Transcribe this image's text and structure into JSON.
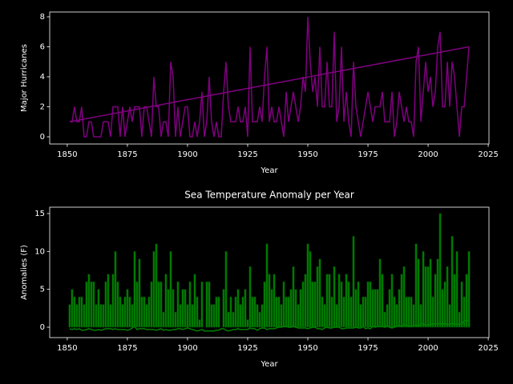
{
  "chart_data": [
    {
      "type": "line",
      "xlabel": "Year",
      "ylabel": "Major Hurricanes",
      "xlim": [
        1842.7,
        2025.3
      ],
      "xticks": [
        1850,
        1875,
        1900,
        1925,
        1950,
        1975,
        2000,
        2025
      ],
      "ylim": [
        -0.48,
        8.32
      ],
      "yticks": [
        0,
        2,
        4,
        6,
        8
      ],
      "x": [
        1851,
        1852,
        1853,
        1854,
        1855,
        1856,
        1857,
        1858,
        1859,
        1860,
        1861,
        1862,
        1863,
        1864,
        1865,
        1866,
        1867,
        1868,
        1869,
        1870,
        1871,
        1872,
        1873,
        1874,
        1875,
        1876,
        1877,
        1878,
        1879,
        1880,
        1881,
        1882,
        1883,
        1884,
        1885,
        1886,
        1887,
        1888,
        1889,
        1890,
        1891,
        1892,
        1893,
        1894,
        1895,
        1896,
        1897,
        1898,
        1899,
        1900,
        1901,
        1902,
        1903,
        1904,
        1905,
        1906,
        1907,
        1908,
        1909,
        1910,
        1911,
        1912,
        1913,
        1914,
        1915,
        1916,
        1917,
        1918,
        1919,
        1920,
        1921,
        1922,
        1923,
        1924,
        1925,
        1926,
        1927,
        1928,
        1929,
        1930,
        1931,
        1932,
        1933,
        1934,
        1935,
        1936,
        1937,
        1938,
        1939,
        1940,
        1941,
        1942,
        1943,
        1944,
        1945,
        1946,
        1947,
        1948,
        1949,
        1950,
        1951,
        1952,
        1953,
        1954,
        1955,
        1956,
        1957,
        1958,
        1959,
        1960,
        1961,
        1962,
        1963,
        1964,
        1965,
        1966,
        1967,
        1968,
        1969,
        1970,
        1971,
        1972,
        1973,
        1974,
        1975,
        1976,
        1977,
        1978,
        1979,
        1980,
        1981,
        1982,
        1983,
        1984,
        1985,
        1986,
        1987,
        1988,
        1989,
        1990,
        1991,
        1992,
        1993,
        1994,
        1995,
        1996,
        1997,
        1998,
        1999,
        2000,
        2001,
        2002,
        2003,
        2004,
        2005,
        2006,
        2007,
        2008,
        2009,
        2010,
        2011,
        2012,
        2013,
        2014,
        2015,
        2016,
        2017
      ],
      "series": [
        {
          "type": "line",
          "color": "#800080",
          "values": [
            1,
            1,
            2,
            1,
            1,
            2,
            0,
            0,
            1,
            1,
            0,
            0,
            0,
            0,
            1,
            1,
            1,
            0,
            2,
            2,
            2,
            0,
            2,
            0,
            1,
            2,
            1,
            2,
            2,
            2,
            0,
            2,
            2,
            1,
            0,
            4,
            2,
            2,
            0,
            1,
            1,
            0,
            5,
            4,
            0,
            2,
            0,
            1,
            2,
            2,
            0,
            0,
            1,
            0,
            1,
            3,
            0,
            1,
            4,
            1,
            0,
            1,
            0,
            0,
            3,
            5,
            2,
            1,
            1,
            1,
            2,
            1,
            1,
            2,
            0,
            6,
            1,
            1,
            1,
            2,
            1,
            4,
            6,
            1,
            2,
            1,
            1,
            2,
            1,
            0,
            3,
            1,
            2,
            3,
            2,
            1,
            2,
            4,
            3,
            8,
            5,
            3,
            4,
            2,
            6,
            2,
            2,
            5,
            2,
            2,
            7,
            1,
            2,
            6,
            1,
            3,
            1,
            0,
            5,
            2,
            1,
            0,
            1,
            2,
            3,
            2,
            1,
            2,
            2,
            2,
            3,
            1,
            1,
            1,
            3,
            0,
            1,
            3,
            2,
            1,
            2,
            1,
            1,
            0,
            5,
            6,
            1,
            3,
            5,
            3,
            4,
            2,
            3,
            6,
            7,
            2,
            2,
            5,
            2,
            5,
            4,
            2,
            0,
            2,
            2,
            4,
            6
          ]
        },
        {
          "type": "line",
          "color": "#800080",
          "x": [
            1851,
            2017
          ],
          "values": [
            1,
            6
          ]
        }
      ]
    },
    {
      "type": "bar",
      "title": "Sea Temperature Anomaly per Year",
      "xlabel": "Year",
      "ylabel": "Anomalies (F)",
      "xlim": [
        1842.7,
        2025.3
      ],
      "xticks": [
        1850,
        1875,
        1900,
        1925,
        1950,
        1975,
        2000,
        2025
      ],
      "ylim": [
        -1.37,
        15.84
      ],
      "yticks": [
        0,
        5,
        10,
        15
      ],
      "x": [
        1851,
        1852,
        1853,
        1854,
        1855,
        1856,
        1857,
        1858,
        1859,
        1860,
        1861,
        1862,
        1863,
        1864,
        1865,
        1866,
        1867,
        1868,
        1869,
        1870,
        1871,
        1872,
        1873,
        1874,
        1875,
        1876,
        1877,
        1878,
        1879,
        1880,
        1881,
        1882,
        1883,
        1884,
        1885,
        1886,
        1887,
        1888,
        1889,
        1890,
        1891,
        1892,
        1893,
        1894,
        1895,
        1896,
        1897,
        1898,
        1899,
        1900,
        1901,
        1902,
        1903,
        1904,
        1905,
        1906,
        1907,
        1908,
        1909,
        1910,
        1911,
        1912,
        1913,
        1914,
        1915,
        1916,
        1917,
        1918,
        1919,
        1920,
        1921,
        1922,
        1923,
        1924,
        1925,
        1926,
        1927,
        1928,
        1929,
        1930,
        1931,
        1932,
        1933,
        1934,
        1935,
        1936,
        1937,
        1938,
        1939,
        1940,
        1941,
        1942,
        1943,
        1944,
        1945,
        1946,
        1947,
        1948,
        1949,
        1950,
        1951,
        1952,
        1953,
        1954,
        1955,
        1956,
        1957,
        1958,
        1959,
        1960,
        1961,
        1962,
        1963,
        1964,
        1965,
        1966,
        1967,
        1968,
        1969,
        1970,
        1971,
        1972,
        1973,
        1974,
        1975,
        1976,
        1977,
        1978,
        1979,
        1980,
        1981,
        1982,
        1983,
        1984,
        1985,
        1986,
        1987,
        1988,
        1989,
        1990,
        1991,
        1992,
        1993,
        1994,
        1995,
        1996,
        1997,
        1998,
        1999,
        2000,
        2001,
        2002,
        2003,
        2004,
        2005,
        2006,
        2007,
        2008,
        2009,
        2010,
        2011,
        2012,
        2013,
        2014,
        2015,
        2016,
        2017
      ],
      "series": [
        {
          "type": "bar",
          "color": "#008000",
          "values": [
            3,
            5,
            4,
            3,
            4,
            4,
            3,
            6,
            7,
            6,
            6,
            3,
            5,
            3,
            3,
            6,
            7,
            3,
            7,
            10,
            6,
            4,
            3,
            4,
            5,
            4,
            3,
            10,
            6,
            9,
            4,
            4,
            3,
            4,
            6,
            10,
            11,
            6,
            6,
            2,
            7,
            5,
            10,
            5,
            2,
            6,
            3,
            5,
            5,
            3,
            6,
            3,
            7,
            4,
            1,
            6,
            0,
            6,
            6,
            3,
            3,
            4,
            4,
            0,
            5,
            10,
            2,
            4,
            2,
            4,
            5,
            3,
            4,
            5,
            1,
            8,
            4,
            4,
            3,
            2,
            3,
            6,
            11,
            7,
            5,
            7,
            4,
            4,
            3,
            6,
            4,
            4,
            5,
            8,
            5,
            3,
            5,
            6,
            7,
            11,
            10,
            6,
            6,
            8,
            9,
            4,
            3,
            7,
            7,
            4,
            8,
            3,
            7,
            6,
            4,
            7,
            6,
            4,
            12,
            5,
            6,
            3,
            4,
            4,
            6,
            6,
            5,
            5,
            5,
            9,
            7,
            2,
            3,
            5,
            7,
            4,
            3,
            5,
            7,
            8,
            4,
            4,
            4,
            3,
            11,
            9,
            3,
            10,
            8,
            8,
            9,
            4,
            7,
            9,
            15,
            5,
            6,
            8,
            3,
            12,
            7,
            10,
            2,
            6,
            4,
            7,
            10
          ]
        },
        {
          "type": "line",
          "color": "#008000",
          "values": [
            -0.2,
            -0.3,
            -0.2,
            -0.3,
            -0.2,
            -0.4,
            -0.4,
            -0.3,
            -0.2,
            -0.3,
            -0.4,
            -0.4,
            -0.3,
            -0.4,
            -0.3,
            -0.2,
            -0.2,
            -0.2,
            -0.3,
            -0.2,
            -0.3,
            -0.3,
            -0.3,
            -0.3,
            -0.4,
            -0.3,
            -0.1,
            0.1,
            -0.3,
            -0.2,
            -0.2,
            -0.2,
            -0.3,
            -0.3,
            -0.3,
            -0.3,
            -0.4,
            -0.3,
            -0.2,
            -0.4,
            -0.3,
            -0.4,
            -0.4,
            -0.3,
            -0.3,
            -0.2,
            -0.2,
            -0.3,
            -0.2,
            -0.1,
            -0.2,
            -0.3,
            -0.4,
            -0.5,
            -0.4,
            -0.3,
            -0.5,
            -0.5,
            -0.5,
            -0.5,
            -0.5,
            -0.4,
            -0.4,
            -0.2,
            -0.2,
            -0.4,
            -0.5,
            -0.4,
            -0.3,
            -0.3,
            -0.2,
            -0.3,
            -0.3,
            -0.3,
            -0.3,
            -0.1,
            -0.2,
            -0.2,
            -0.4,
            -0.2,
            -0.1,
            -0.1,
            -0.3,
            -0.2,
            -0.2,
            -0.2,
            -0.1,
            0.0,
            0.0,
            0.1,
            0.1,
            0.0,
            0.0,
            0.1,
            0.0,
            -0.1,
            -0.1,
            -0.1,
            -0.1,
            -0.2,
            -0.1,
            0.0,
            0.0,
            -0.2,
            -0.2,
            -0.3,
            -0.1,
            0.0,
            -0.1,
            -0.1,
            0.0,
            0.0,
            0.0,
            -0.2,
            -0.2,
            -0.1,
            -0.1,
            -0.1,
            -0.1,
            0.0,
            -0.1,
            -0.1,
            0.1,
            -0.2,
            -0.1,
            -0.2,
            0.1,
            0.0,
            0.1,
            0.1,
            0.1,
            0.0,
            0.2,
            0.0,
            -0.1,
            0.0,
            0.2,
            0.2,
            0.1,
            0.3,
            0.3,
            0.1,
            0.1,
            0.2,
            0.3,
            0.1,
            0.4,
            0.5,
            0.2,
            0.3,
            0.4,
            0.4,
            0.5,
            0.4,
            0.5,
            0.4,
            0.5,
            0.3,
            0.4,
            0.5,
            0.4,
            0.4,
            0.4,
            0.5,
            0.8,
            0.9,
            0.8
          ]
        }
      ]
    }
  ]
}
